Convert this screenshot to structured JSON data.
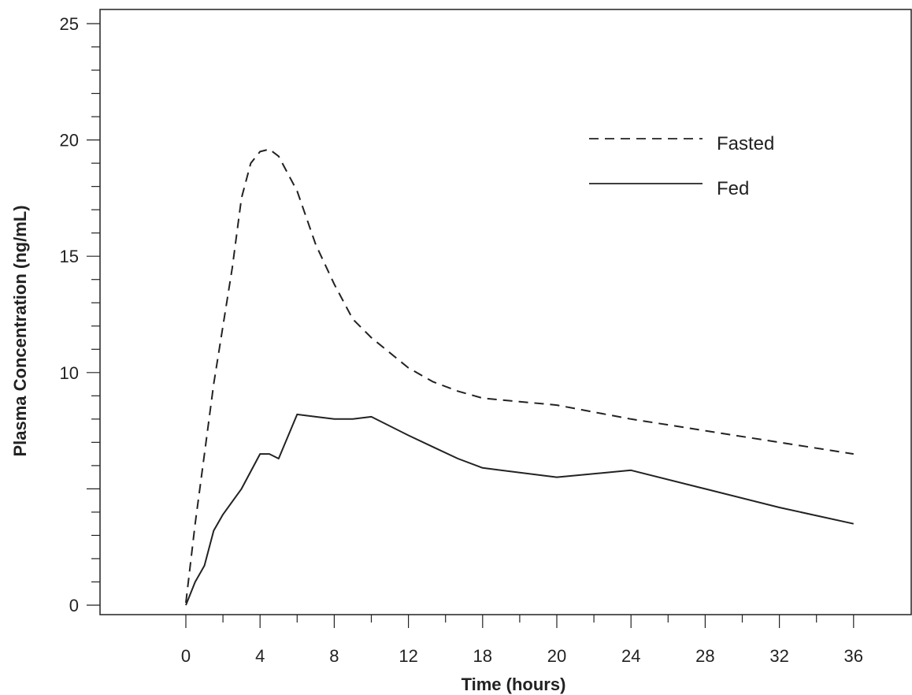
{
  "chart_data": {
    "type": "line",
    "title": "",
    "xlabel": "Time (hours)",
    "ylabel": "Plasma Concentration (ng/mL)",
    "x_tick_labels": [
      "0",
      "4",
      "8",
      "12",
      "18",
      "20",
      "24",
      "28",
      "32",
      "36"
    ],
    "y_ticks": [
      0,
      5,
      10,
      15,
      20,
      25
    ],
    "y_tick_labels": [
      "0",
      "",
      "10",
      "15",
      "20",
      "25"
    ],
    "ylim": [
      0,
      25
    ],
    "grid": false,
    "legend_position": "top-right",
    "series": [
      {
        "name": "Fasted",
        "style": "dashed",
        "color": "#222222",
        "points": [
          [
            0,
            0.1
          ],
          [
            0.5,
            3.5
          ],
          [
            1,
            6.5
          ],
          [
            1.5,
            9.5
          ],
          [
            2,
            12
          ],
          [
            2.5,
            14.5
          ],
          [
            3,
            17.5
          ],
          [
            3.5,
            19
          ],
          [
            4,
            19.5
          ],
          [
            4.5,
            19.6
          ],
          [
            5,
            19.3
          ],
          [
            6,
            17.8
          ],
          [
            7,
            15.5
          ],
          [
            8,
            13.8
          ],
          [
            9,
            12.3
          ],
          [
            10,
            11.5
          ],
          [
            12,
            10.2
          ],
          [
            14,
            9.6
          ],
          [
            16,
            9.2
          ],
          [
            18,
            8.9
          ],
          [
            20,
            8.6
          ],
          [
            24,
            8.0
          ],
          [
            28,
            7.5
          ],
          [
            32,
            7.0
          ],
          [
            36,
            6.5
          ]
        ]
      },
      {
        "name": "Fed",
        "style": "solid",
        "color": "#222222",
        "points": [
          [
            0,
            0
          ],
          [
            0.5,
            1
          ],
          [
            1,
            1.7
          ],
          [
            1.5,
            3.2
          ],
          [
            2,
            3.9
          ],
          [
            3,
            5.0
          ],
          [
            4,
            6.5
          ],
          [
            4.5,
            6.5
          ],
          [
            5,
            6.3
          ],
          [
            6,
            8.2
          ],
          [
            7,
            8.1
          ],
          [
            8,
            8.0
          ],
          [
            9,
            8.0
          ],
          [
            10,
            8.1
          ],
          [
            12,
            7.3
          ],
          [
            14,
            6.8
          ],
          [
            16,
            6.3
          ],
          [
            18,
            5.9
          ],
          [
            20,
            5.5
          ],
          [
            24,
            5.8
          ],
          [
            28,
            5.0
          ],
          [
            32,
            4.2
          ],
          [
            36,
            3.5
          ]
        ]
      }
    ]
  }
}
